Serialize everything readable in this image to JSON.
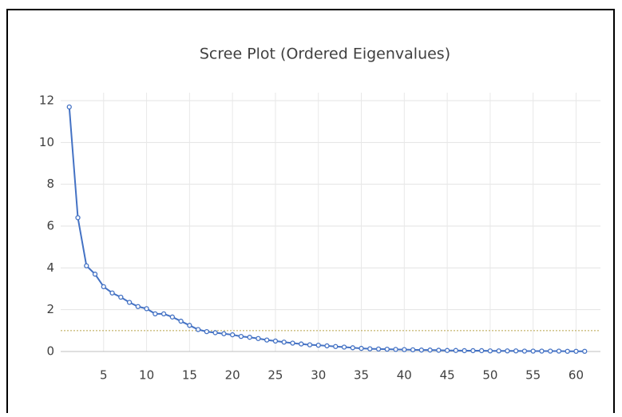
{
  "chart_data": {
    "type": "line",
    "title": "Scree Plot (Ordered Eigenvalues)",
    "x": [
      1,
      2,
      3,
      4,
      5,
      6,
      7,
      8,
      9,
      10,
      11,
      12,
      13,
      14,
      15,
      16,
      17,
      18,
      19,
      20,
      21,
      22,
      23,
      24,
      25,
      26,
      27,
      28,
      29,
      30,
      31,
      32,
      33,
      34,
      35,
      36,
      37,
      38,
      39,
      40,
      41,
      42,
      43,
      44,
      45,
      46,
      47,
      48,
      49,
      50,
      51,
      52,
      53,
      54,
      55,
      56,
      57,
      58,
      59,
      60,
      61
    ],
    "series": [
      {
        "color": "#4472c4",
        "values": [
          11.7,
          6.4,
          4.1,
          3.7,
          3.1,
          2.8,
          2.6,
          2.35,
          2.15,
          2.05,
          1.8,
          1.8,
          1.65,
          1.45,
          1.25,
          1.05,
          0.95,
          0.9,
          0.85,
          0.8,
          0.72,
          0.68,
          0.62,
          0.55,
          0.5,
          0.45,
          0.4,
          0.36,
          0.32,
          0.3,
          0.27,
          0.24,
          0.21,
          0.18,
          0.15,
          0.13,
          0.12,
          0.11,
          0.1,
          0.09,
          0.08,
          0.07,
          0.07,
          0.06,
          0.05,
          0.05,
          0.04,
          0.04,
          0.04,
          0.03,
          0.03,
          0.03,
          0.03,
          0.02,
          0.02,
          0.02,
          0.02,
          0.02,
          0.01,
          0.01,
          0.01
        ]
      }
    ],
    "reference_line": {
      "value": 1,
      "color": "#b8a24a"
    },
    "xlim": [
      0,
      62
    ],
    "xticks": [
      5,
      10,
      15,
      20,
      25,
      30,
      35,
      40,
      45,
      50,
      55,
      60
    ],
    "ylim": [
      0,
      12
    ],
    "yticks": [
      0,
      2,
      4,
      6,
      8,
      10,
      12
    ],
    "grid": true
  }
}
